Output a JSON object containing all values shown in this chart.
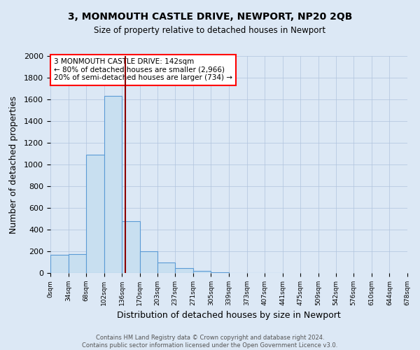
{
  "title": "3, MONMOUTH CASTLE DRIVE, NEWPORT, NP20 2QB",
  "subtitle": "Size of property relative to detached houses in Newport",
  "xlabel": "Distribution of detached houses by size in Newport",
  "ylabel": "Number of detached properties",
  "footer_line1": "Contains HM Land Registry data © Crown copyright and database right 2024.",
  "footer_line2": "Contains public sector information licensed under the Open Government Licence v3.0.",
  "annotation_line1": "3 MONMOUTH CASTLE DRIVE: 142sqm",
  "annotation_line2": "← 80% of detached houses are smaller (2,966)",
  "annotation_line3": "20% of semi-detached houses are larger (734) →",
  "property_size_sqm": 142,
  "bar_color": "#c8dff0",
  "bar_edge_color": "#5b9bd5",
  "vline_color": "#8b0000",
  "bg_color": "#dce8f5",
  "categories": [
    "0sqm",
    "34sqm",
    "68sqm",
    "102sqm",
    "136sqm",
    "170sqm",
    "203sqm",
    "237sqm",
    "271sqm",
    "305sqm",
    "339sqm",
    "373sqm",
    "407sqm",
    "441sqm",
    "475sqm",
    "509sqm",
    "542sqm",
    "576sqm",
    "610sqm",
    "644sqm",
    "678sqm"
  ],
  "bin_edges": [
    0,
    34,
    68,
    102,
    136,
    170,
    203,
    237,
    271,
    305,
    339,
    373,
    407,
    441,
    475,
    509,
    542,
    576,
    610,
    644,
    678
  ],
  "bar_heights": [
    170,
    175,
    1090,
    1630,
    480,
    200,
    100,
    43,
    18,
    5,
    2,
    2,
    2,
    0,
    0,
    0,
    0,
    0,
    0,
    0
  ],
  "ylim": [
    0,
    2000
  ],
  "yticks": [
    0,
    200,
    400,
    600,
    800,
    1000,
    1200,
    1400,
    1600,
    1800,
    2000
  ]
}
